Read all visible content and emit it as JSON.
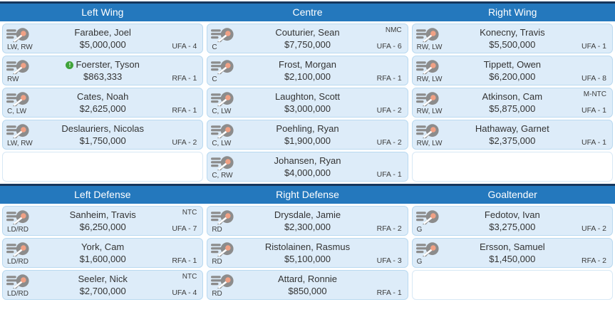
{
  "colors": {
    "header_blue": "#2478bd",
    "header_dark_border": "#16365c",
    "card_background": "#ddecf9",
    "card_border": "#b9d9f0",
    "info_icon_green": "#3fa33a",
    "logo_gray": "#8c8c8c",
    "logo_orange": "#f0a185"
  },
  "icons": {
    "team_logo": "flyers-logo",
    "info_icon_glyph": "!"
  },
  "sections": [
    {
      "columns": [
        {
          "title": "Left Wing",
          "slots": [
            {
              "name": "Farabee, Joel",
              "salary": "$5,000,000",
              "positions": "LW, RW",
              "clause": "",
              "status": "UFA - 4",
              "info": false
            },
            {
              "name": "Foerster, Tyson",
              "salary": "$863,333",
              "positions": "RW",
              "clause": "",
              "status": "RFA - 1",
              "info": true
            },
            {
              "name": "Cates, Noah",
              "salary": "$2,625,000",
              "positions": "C, LW",
              "clause": "",
              "status": "RFA - 1",
              "info": false
            },
            {
              "name": "Deslauriers, Nicolas",
              "salary": "$1,750,000",
              "positions": "LW, RW",
              "clause": "",
              "status": "UFA - 2",
              "info": false
            },
            {
              "empty": true
            }
          ]
        },
        {
          "title": "Centre",
          "slots": [
            {
              "name": "Couturier, Sean",
              "salary": "$7,750,000",
              "positions": "C",
              "clause": "NMC",
              "status": "UFA - 6",
              "info": false
            },
            {
              "name": "Frost, Morgan",
              "salary": "$2,100,000",
              "positions": "C",
              "clause": "",
              "status": "RFA - 1",
              "info": false
            },
            {
              "name": "Laughton, Scott",
              "salary": "$3,000,000",
              "positions": "C, LW",
              "clause": "",
              "status": "UFA - 2",
              "info": false
            },
            {
              "name": "Poehling, Ryan",
              "salary": "$1,900,000",
              "positions": "C, LW",
              "clause": "",
              "status": "UFA - 2",
              "info": false
            },
            {
              "name": "Johansen, Ryan",
              "salary": "$4,000,000",
              "positions": "C, RW",
              "clause": "",
              "status": "UFA - 1",
              "info": false
            }
          ]
        },
        {
          "title": "Right Wing",
          "slots": [
            {
              "name": "Konecny, Travis",
              "salary": "$5,500,000",
              "positions": "RW, LW",
              "clause": "",
              "status": "UFA - 1",
              "info": false
            },
            {
              "name": "Tippett, Owen",
              "salary": "$6,200,000",
              "positions": "RW, LW",
              "clause": "",
              "status": "UFA - 8",
              "info": false
            },
            {
              "name": "Atkinson, Cam",
              "salary": "$5,875,000",
              "positions": "RW, LW",
              "clause": "M-NTC",
              "status": "UFA - 1",
              "info": false
            },
            {
              "name": "Hathaway, Garnet",
              "salary": "$2,375,000",
              "positions": "RW, LW",
              "clause": "",
              "status": "UFA - 1",
              "info": false
            },
            {
              "empty": true
            }
          ]
        }
      ]
    },
    {
      "columns": [
        {
          "title": "Left Defense",
          "slots": [
            {
              "name": "Sanheim, Travis",
              "salary": "$6,250,000",
              "positions": "LD/RD",
              "clause": "NTC",
              "status": "UFA - 7",
              "info": false
            },
            {
              "name": "York, Cam",
              "salary": "$1,600,000",
              "positions": "LD/RD",
              "clause": "",
              "status": "RFA - 1",
              "info": false
            },
            {
              "name": "Seeler, Nick",
              "salary": "$2,700,000",
              "positions": "LD/RD",
              "clause": "NTC",
              "status": "UFA - 4",
              "info": false
            }
          ]
        },
        {
          "title": "Right Defense",
          "slots": [
            {
              "name": "Drysdale, Jamie",
              "salary": "$2,300,000",
              "positions": "RD",
              "clause": "",
              "status": "RFA - 2",
              "info": false
            },
            {
              "name": "Ristolainen, Rasmus",
              "salary": "$5,100,000",
              "positions": "RD",
              "clause": "",
              "status": "UFA - 3",
              "info": false
            },
            {
              "name": "Attard, Ronnie",
              "salary": "$850,000",
              "positions": "RD",
              "clause": "",
              "status": "RFA - 1",
              "info": false
            }
          ]
        },
        {
          "title": "Goaltender",
          "slots": [
            {
              "name": "Fedotov, Ivan",
              "salary": "$3,275,000",
              "positions": "G",
              "clause": "",
              "status": "UFA - 2",
              "info": false
            },
            {
              "name": "Ersson, Samuel",
              "salary": "$1,450,000",
              "positions": "G",
              "clause": "",
              "status": "RFA - 2",
              "info": false
            },
            {
              "empty": true
            }
          ]
        }
      ]
    }
  ]
}
